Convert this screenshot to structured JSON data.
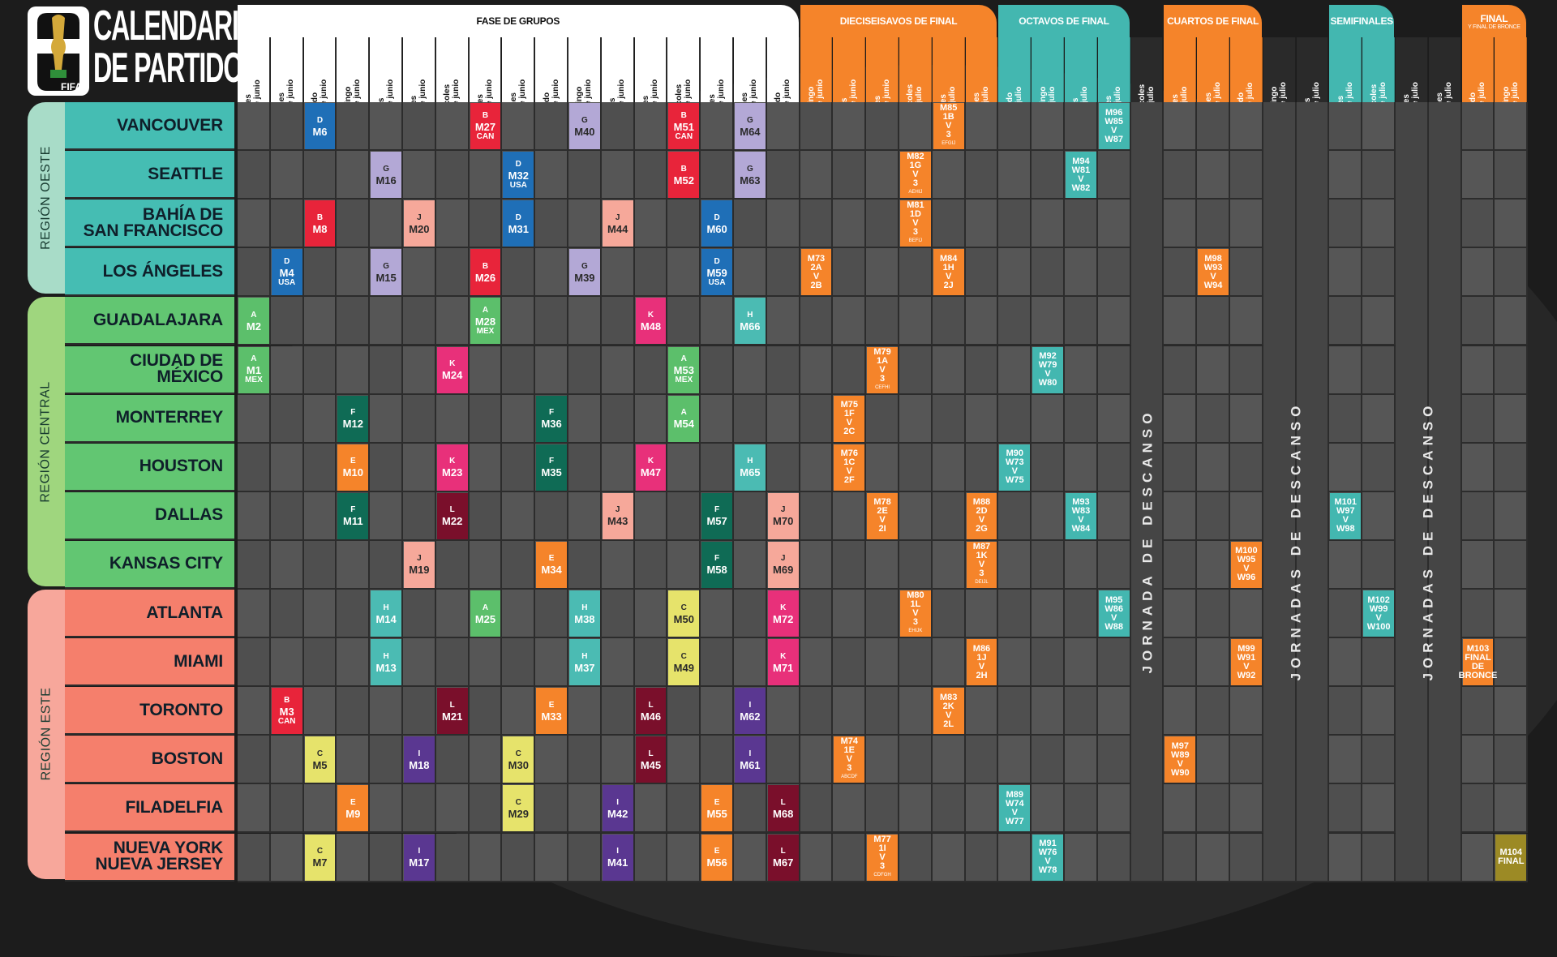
{
  "header": {
    "title_line1": "CALENDARIO",
    "title_line2": "DE PARTIDOS",
    "logo_text": "FIFA",
    "logo_numeral": "26"
  },
  "phases": [
    {
      "label": "FASE DE GRUPOS",
      "sub": "",
      "color": "#ffffff",
      "text": "#111111"
    },
    {
      "label": "DIECISEISAVOS DE FINAL",
      "sub": "",
      "color": "#f5842a",
      "text": "#ffffff"
    },
    {
      "label": "OCTAVOS DE FINAL",
      "sub": "",
      "color": "#43b7b0",
      "text": "#ffffff"
    },
    {
      "label": "CUARTOS DE FINAL",
      "sub": "",
      "color": "#f5842a",
      "text": "#ffffff"
    },
    {
      "label": "SEMIFINALES",
      "sub": "",
      "color": "#43b7b0",
      "text": "#ffffff"
    },
    {
      "label": "FINAL",
      "sub": "Y FINAL DE BRONCE",
      "color": "#f5842a",
      "text": "#ffffff"
    }
  ],
  "dates": [
    {
      "day": "Jueves",
      "date": "11 de junio"
    },
    {
      "day": "Viernes",
      "date": "12 de junio"
    },
    {
      "day": "Sábado",
      "date": "13 de junio"
    },
    {
      "day": "Domingo",
      "date": "14 de junio"
    },
    {
      "day": "Lunes",
      "date": "15 de junio"
    },
    {
      "day": "Martes",
      "date": "16 de junio"
    },
    {
      "day": "Miércoles",
      "date": "17 de junio"
    },
    {
      "day": "Jueves",
      "date": "18 de junio"
    },
    {
      "day": "Viernes",
      "date": "19 de junio"
    },
    {
      "day": "Sábado",
      "date": "20 de junio"
    },
    {
      "day": "Domingo",
      "date": "21 de junio"
    },
    {
      "day": "Lunes",
      "date": "22 de junio"
    },
    {
      "day": "Martes",
      "date": "23 de junio"
    },
    {
      "day": "Miércoles",
      "date": "24 de junio"
    },
    {
      "day": "Jueves",
      "date": "25 de junio"
    },
    {
      "day": "Viernes",
      "date": "26 de junio"
    },
    {
      "day": "Sábado",
      "date": "27 de junio"
    },
    {
      "day": "Domingo",
      "date": "28 de junio"
    },
    {
      "day": "Lunes",
      "date": "29 de junio"
    },
    {
      "day": "Martes",
      "date": "30 de junio"
    },
    {
      "day": "Miércoles",
      "date": "1 de julio"
    },
    {
      "day": "Jueves",
      "date": "2 de julio"
    },
    {
      "day": "Viernes",
      "date": "3 de julio"
    },
    {
      "day": "Sábado",
      "date": "4 de julio"
    },
    {
      "day": "Domingo",
      "date": "5 de julio"
    },
    {
      "day": "Lunes",
      "date": "6 de julio"
    },
    {
      "day": "Martes",
      "date": "7 de julio"
    },
    {
      "day": "Miércoles",
      "date": "8 de julio"
    },
    {
      "day": "Jueves",
      "date": "9 de julio"
    },
    {
      "day": "Viernes",
      "date": "10 de julio"
    },
    {
      "day": "Sábado",
      "date": "11 de julio"
    },
    {
      "day": "Domingo",
      "date": "12 de julio"
    },
    {
      "day": "Lunes",
      "date": "13 de julio"
    },
    {
      "day": "Martes",
      "date": "14 de julio"
    },
    {
      "day": "Miércoles",
      "date": "15 de julio"
    },
    {
      "day": "Jueves",
      "date": "16 de julio"
    },
    {
      "day": "Viernes",
      "date": "17 de julio"
    },
    {
      "day": "Sábado",
      "date": "18 de julio"
    },
    {
      "day": "Domingo",
      "date": "19 de julio"
    }
  ],
  "regions": [
    {
      "name": "REGIÓN OESTE",
      "color": "#a8dcc8",
      "cityColor": "#45bdb3",
      "rows": 4
    },
    {
      "name": "REGIÓN CENTRAL",
      "color": "#9fd67e",
      "cityColor": "#62c672",
      "rows": 6
    },
    {
      "name": "REGIÓN ESTE",
      "color": "#f7a79b",
      "cityColor": "#f57f6c",
      "rows": 6
    }
  ],
  "cities": [
    {
      "l1": "VANCOUVER",
      "l2": ""
    },
    {
      "l1": "SEATTLE",
      "l2": ""
    },
    {
      "l1": "BAHÍA DE",
      "l2": "SAN FRANCISCO"
    },
    {
      "l1": "LOS ÁNGELES",
      "l2": ""
    },
    {
      "l1": "GUADALAJARA",
      "l2": ""
    },
    {
      "l1": "CIUDAD DE",
      "l2": "MÉXICO"
    },
    {
      "l1": "MONTERREY",
      "l2": ""
    },
    {
      "l1": "HOUSTON",
      "l2": ""
    },
    {
      "l1": "DALLAS",
      "l2": ""
    },
    {
      "l1": "KANSAS CITY",
      "l2": ""
    },
    {
      "l1": "ATLANTA",
      "l2": ""
    },
    {
      "l1": "MIAMI",
      "l2": ""
    },
    {
      "l1": "TORONTO",
      "l2": ""
    },
    {
      "l1": "BOSTON",
      "l2": ""
    },
    {
      "l1": "FILADELFIA",
      "l2": ""
    },
    {
      "l1": "NUEVA YORK",
      "l2": "NUEVA JERSEY"
    }
  ],
  "group_colors": {
    "A": "#5cbf6b",
    "B": "#e8243a",
    "C": "#e6e36b",
    "D": "#1f6fb7",
    "E": "#f5842a",
    "F": "#0f6b55",
    "G": "#b3a8d6",
    "H": "#4bbbb3",
    "I": "#5a3791",
    "J": "#f6a89a",
    "K": "#e8307a",
    "L": "#7a0f2b"
  },
  "ko_colors": {
    "orange": "#f5842a",
    "teal": "#43b7b0",
    "gold": "#9c8a25"
  },
  "group_matches": [
    {
      "r": 0,
      "c": 2,
      "g": "D",
      "m": "M6",
      "t": ""
    },
    {
      "r": 0,
      "c": 7,
      "g": "B",
      "m": "M27",
      "t": "CAN"
    },
    {
      "r": 0,
      "c": 10,
      "g": "G",
      "m": "M40",
      "t": ""
    },
    {
      "r": 0,
      "c": 13,
      "g": "B",
      "m": "M51",
      "t": "CAN"
    },
    {
      "r": 0,
      "c": 15,
      "g": "G",
      "m": "M64",
      "t": ""
    },
    {
      "r": 1,
      "c": 4,
      "g": "G",
      "m": "M16",
      "t": ""
    },
    {
      "r": 1,
      "c": 8,
      "g": "D",
      "m": "M32",
      "t": "USA"
    },
    {
      "r": 1,
      "c": 13,
      "g": "B",
      "m": "M52",
      "t": ""
    },
    {
      "r": 1,
      "c": 15,
      "g": "G",
      "m": "M63",
      "t": ""
    },
    {
      "r": 2,
      "c": 2,
      "g": "B",
      "m": "M8",
      "t": ""
    },
    {
      "r": 2,
      "c": 5,
      "g": "J",
      "m": "M20",
      "t": ""
    },
    {
      "r": 2,
      "c": 8,
      "g": "D",
      "m": "M31",
      "t": ""
    },
    {
      "r": 2,
      "c": 11,
      "g": "J",
      "m": "M44",
      "t": ""
    },
    {
      "r": 2,
      "c": 14,
      "g": "D",
      "m": "M60",
      "t": ""
    },
    {
      "r": 3,
      "c": 1,
      "g": "D",
      "m": "M4",
      "t": "USA"
    },
    {
      "r": 3,
      "c": 4,
      "g": "G",
      "m": "M15",
      "t": ""
    },
    {
      "r": 3,
      "c": 7,
      "g": "B",
      "m": "M26",
      "t": ""
    },
    {
      "r": 3,
      "c": 10,
      "g": "G",
      "m": "M39",
      "t": ""
    },
    {
      "r": 3,
      "c": 14,
      "g": "D",
      "m": "M59",
      "t": "USA"
    },
    {
      "r": 4,
      "c": 0,
      "g": "A",
      "m": "M2",
      "t": ""
    },
    {
      "r": 4,
      "c": 7,
      "g": "A",
      "m": "M28",
      "t": "MEX"
    },
    {
      "r": 4,
      "c": 12,
      "g": "K",
      "m": "M48",
      "t": ""
    },
    {
      "r": 4,
      "c": 15,
      "g": "H",
      "m": "M66",
      "t": ""
    },
    {
      "r": 5,
      "c": 0,
      "g": "A",
      "m": "M1",
      "t": "MEX"
    },
    {
      "r": 5,
      "c": 6,
      "g": "K",
      "m": "M24",
      "t": ""
    },
    {
      "r": 5,
      "c": 13,
      "g": "A",
      "m": "M53",
      "t": "MEX"
    },
    {
      "r": 6,
      "c": 3,
      "g": "F",
      "m": "M12",
      "t": ""
    },
    {
      "r": 6,
      "c": 9,
      "g": "F",
      "m": "M36",
      "t": ""
    },
    {
      "r": 6,
      "c": 13,
      "g": "A",
      "m": "M54",
      "t": ""
    },
    {
      "r": 7,
      "c": 3,
      "g": "E",
      "m": "M10",
      "t": ""
    },
    {
      "r": 7,
      "c": 6,
      "g": "K",
      "m": "M23",
      "t": ""
    },
    {
      "r": 7,
      "c": 9,
      "g": "F",
      "m": "M35",
      "t": ""
    },
    {
      "r": 7,
      "c": 12,
      "g": "K",
      "m": "M47",
      "t": ""
    },
    {
      "r": 7,
      "c": 15,
      "g": "H",
      "m": "M65",
      "t": ""
    },
    {
      "r": 8,
      "c": 3,
      "g": "F",
      "m": "M11",
      "t": ""
    },
    {
      "r": 8,
      "c": 6,
      "g": "L",
      "m": "M22",
      "t": ""
    },
    {
      "r": 8,
      "c": 11,
      "g": "J",
      "m": "M43",
      "t": ""
    },
    {
      "r": 8,
      "c": 14,
      "g": "F",
      "m": "M57",
      "t": ""
    },
    {
      "r": 8,
      "c": 16,
      "g": "J",
      "m": "M70",
      "t": ""
    },
    {
      "r": 9,
      "c": 5,
      "g": "J",
      "m": "M19",
      "t": ""
    },
    {
      "r": 9,
      "c": 9,
      "g": "E",
      "m": "M34",
      "t": ""
    },
    {
      "r": 9,
      "c": 14,
      "g": "F",
      "m": "M58",
      "t": ""
    },
    {
      "r": 9,
      "c": 16,
      "g": "J",
      "m": "M69",
      "t": ""
    },
    {
      "r": 10,
      "c": 4,
      "g": "H",
      "m": "M14",
      "t": ""
    },
    {
      "r": 10,
      "c": 7,
      "g": "A",
      "m": "M25",
      "t": ""
    },
    {
      "r": 10,
      "c": 10,
      "g": "H",
      "m": "M38",
      "t": ""
    },
    {
      "r": 10,
      "c": 13,
      "g": "C",
      "m": "M50",
      "t": ""
    },
    {
      "r": 10,
      "c": 16,
      "g": "K",
      "m": "M72",
      "t": ""
    },
    {
      "r": 11,
      "c": 4,
      "g": "H",
      "m": "M13",
      "t": ""
    },
    {
      "r": 11,
      "c": 10,
      "g": "H",
      "m": "M37",
      "t": ""
    },
    {
      "r": 11,
      "c": 13,
      "g": "C",
      "m": "M49",
      "t": ""
    },
    {
      "r": 11,
      "c": 16,
      "g": "K",
      "m": "M71",
      "t": ""
    },
    {
      "r": 12,
      "c": 1,
      "g": "B",
      "m": "M3",
      "t": "CAN"
    },
    {
      "r": 12,
      "c": 6,
      "g": "L",
      "m": "M21",
      "t": ""
    },
    {
      "r": 12,
      "c": 9,
      "g": "E",
      "m": "M33",
      "t": ""
    },
    {
      "r": 12,
      "c": 12,
      "g": "L",
      "m": "M46",
      "t": ""
    },
    {
      "r": 12,
      "c": 15,
      "g": "I",
      "m": "M62",
      "t": ""
    },
    {
      "r": 13,
      "c": 2,
      "g": "C",
      "m": "M5",
      "t": ""
    },
    {
      "r": 13,
      "c": 5,
      "g": "I",
      "m": "M18",
      "t": ""
    },
    {
      "r": 13,
      "c": 8,
      "g": "C",
      "m": "M30",
      "t": ""
    },
    {
      "r": 13,
      "c": 12,
      "g": "L",
      "m": "M45",
      "t": ""
    },
    {
      "r": 13,
      "c": 15,
      "g": "I",
      "m": "M61",
      "t": ""
    },
    {
      "r": 14,
      "c": 3,
      "g": "E",
      "m": "M9",
      "t": ""
    },
    {
      "r": 14,
      "c": 8,
      "g": "C",
      "m": "M29",
      "t": ""
    },
    {
      "r": 14,
      "c": 11,
      "g": "I",
      "m": "M42",
      "t": ""
    },
    {
      "r": 14,
      "c": 14,
      "g": "E",
      "m": "M55",
      "t": ""
    },
    {
      "r": 14,
      "c": 16,
      "g": "L",
      "m": "M68",
      "t": ""
    },
    {
      "r": 15,
      "c": 2,
      "g": "C",
      "m": "M7",
      "t": ""
    },
    {
      "r": 15,
      "c": 5,
      "g": "I",
      "m": "M17",
      "t": ""
    },
    {
      "r": 15,
      "c": 11,
      "g": "I",
      "m": "M41",
      "t": ""
    },
    {
      "r": 15,
      "c": 14,
      "g": "E",
      "m": "M56",
      "t": ""
    },
    {
      "r": 15,
      "c": 16,
      "g": "L",
      "m": "M67",
      "t": ""
    }
  ],
  "ko_matches": [
    {
      "r": 0,
      "c": 21,
      "k": "orange",
      "lines": [
        "M85",
        "1B",
        "V",
        "3"
      ],
      "s": "EFGIJ"
    },
    {
      "r": 0,
      "c": 26,
      "k": "teal",
      "lines": [
        "M96",
        "W85",
        "V",
        "W87"
      ],
      "s": ""
    },
    {
      "r": 1,
      "c": 20,
      "k": "orange",
      "lines": [
        "M82",
        "1G",
        "V",
        "3"
      ],
      "s": "AEHIJ"
    },
    {
      "r": 1,
      "c": 25,
      "k": "teal",
      "lines": [
        "M94",
        "W81",
        "V",
        "W82"
      ],
      "s": ""
    },
    {
      "r": 2,
      "c": 20,
      "k": "orange",
      "lines": [
        "M81",
        "1D",
        "V",
        "3"
      ],
      "s": "BEFIJ"
    },
    {
      "r": 3,
      "c": 17,
      "k": "orange",
      "lines": [
        "M73",
        "2A",
        "V",
        "2B"
      ],
      "s": ""
    },
    {
      "r": 3,
      "c": 21,
      "k": "orange",
      "lines": [
        "M84",
        "1H",
        "V",
        "2J"
      ],
      "s": ""
    },
    {
      "r": 3,
      "c": 29,
      "k": "orange",
      "lines": [
        "M98",
        "W93",
        "V",
        "W94"
      ],
      "s": ""
    },
    {
      "r": 5,
      "c": 19,
      "k": "orange",
      "lines": [
        "M79",
        "1A",
        "V",
        "3"
      ],
      "s": "CEFHI"
    },
    {
      "r": 5,
      "c": 24,
      "k": "teal",
      "lines": [
        "M92",
        "W79",
        "V",
        "W80"
      ],
      "s": ""
    },
    {
      "r": 6,
      "c": 18,
      "k": "orange",
      "lines": [
        "M75",
        "1F",
        "V",
        "2C"
      ],
      "s": ""
    },
    {
      "r": 7,
      "c": 18,
      "k": "orange",
      "lines": [
        "M76",
        "1C",
        "V",
        "2F"
      ],
      "s": ""
    },
    {
      "r": 7,
      "c": 23,
      "k": "teal",
      "lines": [
        "M90",
        "W73",
        "V",
        "W75"
      ],
      "s": ""
    },
    {
      "r": 8,
      "c": 19,
      "k": "orange",
      "lines": [
        "M78",
        "2E",
        "V",
        "2I"
      ],
      "s": ""
    },
    {
      "r": 8,
      "c": 22,
      "k": "orange",
      "lines": [
        "M88",
        "2D",
        "V",
        "2G"
      ],
      "s": ""
    },
    {
      "r": 8,
      "c": 25,
      "k": "teal",
      "lines": [
        "M93",
        "W83",
        "V",
        "W84"
      ],
      "s": ""
    },
    {
      "r": 8,
      "c": 33,
      "k": "teal",
      "lines": [
        "M101",
        "W97",
        "V",
        "W98"
      ],
      "s": ""
    },
    {
      "r": 9,
      "c": 22,
      "k": "orange",
      "lines": [
        "M87",
        "1K",
        "V",
        "3"
      ],
      "s": "DEIJL"
    },
    {
      "r": 9,
      "c": 30,
      "k": "orange",
      "lines": [
        "M100",
        "W95",
        "V",
        "W96"
      ],
      "s": ""
    },
    {
      "r": 10,
      "c": 20,
      "k": "orange",
      "lines": [
        "M80",
        "1L",
        "V",
        "3"
      ],
      "s": "EHIJK"
    },
    {
      "r": 10,
      "c": 26,
      "k": "teal",
      "lines": [
        "M95",
        "W86",
        "V",
        "W88"
      ],
      "s": ""
    },
    {
      "r": 10,
      "c": 34,
      "k": "teal",
      "lines": [
        "M102",
        "W99",
        "V",
        "W100"
      ],
      "s": ""
    },
    {
      "r": 11,
      "c": 22,
      "k": "orange",
      "lines": [
        "M86",
        "1J",
        "V",
        "2H"
      ],
      "s": ""
    },
    {
      "r": 11,
      "c": 30,
      "k": "orange",
      "lines": [
        "M99",
        "W91",
        "V",
        "W92"
      ],
      "s": ""
    },
    {
      "r": 11,
      "c": 37,
      "k": "orange",
      "lines": [
        "M103",
        "FINAL",
        "DE",
        "BRONCE"
      ],
      "s": ""
    },
    {
      "r": 12,
      "c": 21,
      "k": "orange",
      "lines": [
        "M83",
        "2K",
        "V",
        "2L"
      ],
      "s": ""
    },
    {
      "r": 13,
      "c": 18,
      "k": "orange",
      "lines": [
        "M74",
        "1E",
        "V",
        "3"
      ],
      "s": "ABCDF"
    },
    {
      "r": 13,
      "c": 28,
      "k": "orange",
      "lines": [
        "M97",
        "W89",
        "V",
        "W90"
      ],
      "s": ""
    },
    {
      "r": 14,
      "c": 23,
      "k": "teal",
      "lines": [
        "M89",
        "W74",
        "V",
        "W77"
      ],
      "s": ""
    },
    {
      "r": 15,
      "c": 19,
      "k": "orange",
      "lines": [
        "M77",
        "1I",
        "V",
        "3"
      ],
      "s": "CDFGH"
    },
    {
      "r": 15,
      "c": 24,
      "k": "teal",
      "lines": [
        "M91",
        "W76",
        "V",
        "W78"
      ],
      "s": ""
    },
    {
      "r": 15,
      "c": 38,
      "k": "gold",
      "lines": [
        "M104",
        "FINAL"
      ],
      "s": ""
    }
  ],
  "rest_days": [
    {
      "label": "JORNADA DE DESCANSO"
    },
    {
      "label": "JORNADAS DE DESCANSO"
    },
    {
      "label": "JORNADAS DE DESCANSO"
    }
  ]
}
